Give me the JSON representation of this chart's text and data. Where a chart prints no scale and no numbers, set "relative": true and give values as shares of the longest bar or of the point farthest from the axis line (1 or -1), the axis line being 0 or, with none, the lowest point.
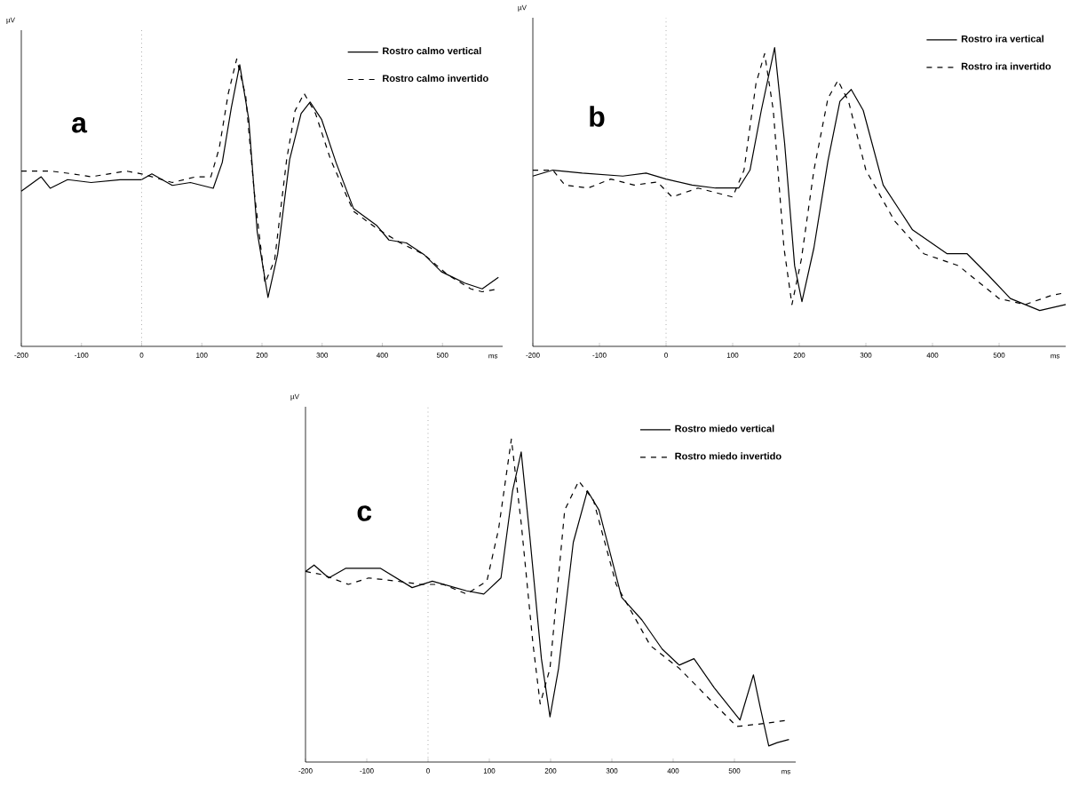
{
  "chart_data": [
    {
      "type": "line",
      "relative": true,
      "xlim": [
        -200,
        600
      ],
      "xticks": [
        -200,
        -100,
        0,
        100,
        200,
        300,
        400,
        500
      ],
      "xlabel": "ms",
      "ylabel": "µV",
      "legend": "top right",
      "annotations": [
        "a"
      ],
      "ref_lines": [
        {
          "axis": "x",
          "value": 0,
          "line_style": "dotted",
          "color": "#808080"
        }
      ],
      "series": [
        {
          "name": "Rostro calmo vertical",
          "color": "#000000",
          "line_style": "solid",
          "x": [
            -200,
            -167,
            -152,
            -123,
            -84,
            -36,
            0,
            17,
            51,
            81,
            119,
            134,
            149,
            163,
            178,
            192,
            210,
            226,
            246,
            265,
            280,
            299,
            323,
            352,
            391,
            411,
            440,
            469,
            498,
            537,
            566,
            593
          ],
          "values": [
            0.54,
            0.59,
            0.55,
            0.58,
            0.57,
            0.58,
            0.58,
            0.6,
            0.56,
            0.57,
            0.55,
            0.64,
            0.83,
            0.98,
            0.79,
            0.4,
            0.17,
            0.32,
            0.65,
            0.81,
            0.85,
            0.79,
            0.64,
            0.48,
            0.42,
            0.37,
            0.36,
            0.32,
            0.26,
            0.22,
            0.2,
            0.24
          ]
        },
        {
          "name": "Rostro calmo invertido",
          "color": "#000000",
          "line_style": "dashed",
          "x": [
            -200,
            -172,
            -152,
            -114,
            -84,
            -26,
            0,
            51,
            90,
            115,
            129,
            144,
            158,
            173,
            187,
            205,
            221,
            241,
            255,
            270,
            289,
            314,
            352,
            391,
            430,
            469,
            508,
            547,
            566,
            593
          ],
          "values": [
            0.61,
            0.61,
            0.61,
            0.6,
            0.59,
            0.61,
            0.6,
            0.57,
            0.59,
            0.59,
            0.69,
            0.88,
            1.0,
            0.87,
            0.54,
            0.22,
            0.3,
            0.65,
            0.82,
            0.88,
            0.81,
            0.65,
            0.47,
            0.41,
            0.36,
            0.32,
            0.25,
            0.2,
            0.19,
            0.2
          ]
        }
      ]
    },
    {
      "type": "line",
      "relative": true,
      "xlim": [
        -200,
        600
      ],
      "xticks": [
        -200,
        -100,
        0,
        100,
        200,
        300,
        400,
        500
      ],
      "xlabel": "ms",
      "ylabel": "µV",
      "legend": "top right",
      "annotations": [
        "b"
      ],
      "ref_lines": [
        {
          "axis": "x",
          "value": 0,
          "line_style": "dotted",
          "color": "#808080"
        }
      ],
      "series": [
        {
          "name": "Rostro ira vertical",
          "color": "#000000",
          "line_style": "solid",
          "x": [
            -200,
            -170,
            -126,
            -65,
            -30,
            0,
            39,
            74,
            109,
            126,
            143,
            163,
            178,
            193,
            204,
            222,
            243,
            261,
            278,
            296,
            326,
            370,
            422,
            452,
            483,
            517,
            561,
            600
          ],
          "values": [
            0.57,
            0.59,
            0.58,
            0.57,
            0.58,
            0.56,
            0.54,
            0.53,
            0.53,
            0.59,
            0.79,
            1.0,
            0.68,
            0.27,
            0.15,
            0.33,
            0.62,
            0.82,
            0.86,
            0.79,
            0.54,
            0.39,
            0.31,
            0.31,
            0.24,
            0.16,
            0.12,
            0.14
          ]
        },
        {
          "name": "Rostro ira invertido",
          "color": "#000000",
          "line_style": "dashed",
          "x": [
            -200,
            -170,
            -152,
            -117,
            -83,
            -48,
            -13,
            9,
            48,
            100,
            117,
            135,
            148,
            161,
            177,
            189,
            203,
            222,
            243,
            258,
            274,
            300,
            343,
            387,
            439,
            500,
            539,
            578,
            600
          ],
          "values": [
            0.59,
            0.59,
            0.54,
            0.53,
            0.56,
            0.54,
            0.55,
            0.5,
            0.53,
            0.5,
            0.59,
            0.88,
            0.98,
            0.79,
            0.33,
            0.14,
            0.29,
            0.59,
            0.83,
            0.89,
            0.82,
            0.59,
            0.42,
            0.31,
            0.27,
            0.16,
            0.14,
            0.17,
            0.18
          ]
        }
      ]
    },
    {
      "type": "line",
      "relative": true,
      "xlim": [
        -200,
        600
      ],
      "xticks": [
        -200,
        -100,
        0,
        100,
        200,
        300,
        400,
        500
      ],
      "xlabel": "ms",
      "ylabel": "µV",
      "legend": "top right",
      "annotations": [
        "c"
      ],
      "ref_lines": [
        {
          "axis": "x",
          "value": 0,
          "line_style": "dotted",
          "color": "#808080"
        }
      ],
      "series": [
        {
          "name": "Rostro miedo vertical",
          "color": "#000000",
          "line_style": "solid",
          "x": [
            -200,
            -186,
            -162,
            -134,
            -78,
            -26,
            7,
            44,
            63,
            91,
            119,
            138,
            152,
            166,
            185,
            199,
            213,
            237,
            260,
            279,
            316,
            349,
            382,
            410,
            434,
            467,
            509,
            531,
            542,
            556,
            570,
            589
          ],
          "values": [
            0.59,
            0.61,
            0.57,
            0.6,
            0.6,
            0.54,
            0.56,
            0.54,
            0.53,
            0.52,
            0.57,
            0.84,
            0.96,
            0.7,
            0.32,
            0.14,
            0.29,
            0.68,
            0.84,
            0.78,
            0.51,
            0.44,
            0.35,
            0.3,
            0.32,
            0.23,
            0.13,
            0.27,
            0.17,
            0.05,
            0.06,
            0.07
          ]
        },
        {
          "name": "Rostro miedo invertido",
          "color": "#000000",
          "line_style": "dashed",
          "x": [
            -200,
            -172,
            -130,
            -97,
            -50,
            -12,
            25,
            63,
            96,
            115,
            136,
            152,
            171,
            183,
            199,
            223,
            246,
            270,
            307,
            363,
            410,
            467,
            504,
            551,
            589
          ],
          "values": [
            0.59,
            0.58,
            0.55,
            0.57,
            0.56,
            0.55,
            0.55,
            0.52,
            0.56,
            0.72,
            1.0,
            0.74,
            0.37,
            0.18,
            0.29,
            0.78,
            0.87,
            0.81,
            0.55,
            0.36,
            0.29,
            0.18,
            0.11,
            0.12,
            0.13
          ]
        }
      ]
    }
  ]
}
